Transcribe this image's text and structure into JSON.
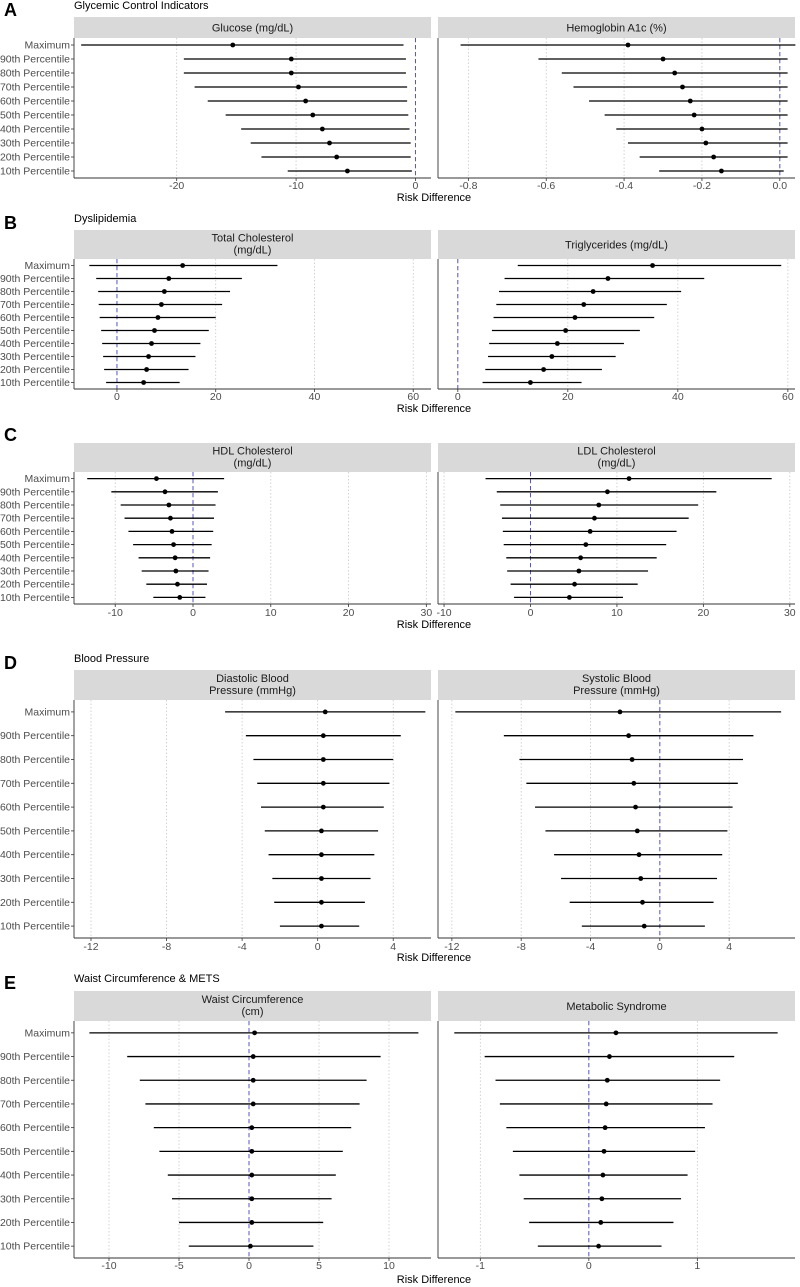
{
  "chart_data": [
    {
      "type": "forest",
      "letter": "A",
      "title": "Glycemic Control Indicators",
      "xlabel": "Risk Difference",
      "categories": [
        "Maximum",
        "90th Percentile",
        "80th Percentile",
        "70th Percentile",
        "60th Percentile",
        "50th Percentile",
        "40th Percentile",
        "30th Percentile",
        "20th Percentile",
        "10th Percentile"
      ],
      "panels": [
        {
          "strip": [
            "Glucose (mg/dL)"
          ],
          "xlim": [
            -28.6,
            1.3
          ],
          "xticks": [
            -20,
            -10,
            0
          ],
          "xtick_labels": [
            "-20",
            "-10",
            "0"
          ],
          "ref": 0,
          "estimate": [
            -15.3,
            -10.4,
            -10.4,
            -9.8,
            -9.2,
            -8.6,
            -7.8,
            -7.2,
            -6.6,
            -5.7
          ],
          "lower": [
            -28.0,
            -19.4,
            -19.4,
            -18.5,
            -17.4,
            -15.9,
            -14.6,
            -13.8,
            -12.9,
            -10.7
          ],
          "upper": [
            -1.0,
            -0.8,
            -0.8,
            -0.7,
            -0.7,
            -0.6,
            -0.5,
            -0.4,
            -0.4,
            -0.3
          ]
        },
        {
          "strip": [
            "Hemoglobin A1c (%)"
          ],
          "xlim": [
            -0.878,
            0.039
          ],
          "xticks": [
            -0.8,
            -0.6,
            -0.4,
            -0.2,
            0.0
          ],
          "xtick_labels": [
            "-0.8",
            "-0.6",
            "-0.4",
            "-0.2",
            "0.0"
          ],
          "ref": 0,
          "estimate": [
            -0.39,
            -0.3,
            -0.27,
            -0.25,
            -0.23,
            -0.22,
            -0.2,
            -0.19,
            -0.17,
            -0.15
          ],
          "lower": [
            -0.82,
            -0.62,
            -0.56,
            -0.53,
            -0.49,
            -0.45,
            -0.42,
            -0.39,
            -0.36,
            -0.31
          ],
          "upper": [
            0.04,
            0.02,
            0.02,
            0.02,
            0.02,
            0.02,
            0.02,
            0.02,
            0.02,
            0.01
          ]
        }
      ]
    },
    {
      "type": "forest",
      "letter": "B",
      "title": "Dyslipidemia",
      "xlabel": "Risk Difference",
      "categories": [
        "Maximum",
        "90th Percentile",
        "80th Percentile",
        "70th Percentile",
        "60th Percentile",
        "50th Percentile",
        "40th Percentile",
        "30th Percentile",
        "20th Percentile",
        "10th Percentile"
      ],
      "panels": [
        {
          "strip": [
            "Total Cholesterol",
            "(mg/dL)"
          ],
          "xlim": [
            -8.7,
            63.6
          ],
          "xticks": [
            0,
            20,
            40,
            60
          ],
          "xtick_labels": [
            "0",
            "20",
            "40",
            "60"
          ],
          "ref": 0,
          "estimate": [
            13.3,
            10.5,
            9.6,
            9.0,
            8.3,
            7.6,
            7.0,
            6.4,
            6.0,
            5.4
          ],
          "lower": [
            -5.6,
            -4.2,
            -3.8,
            -3.7,
            -3.5,
            -3.2,
            -3.0,
            -2.8,
            -2.6,
            -2.2
          ],
          "upper": [
            32.5,
            25.3,
            22.9,
            21.3,
            20.0,
            18.6,
            16.9,
            15.9,
            14.5,
            12.7
          ]
        },
        {
          "strip": [
            "Triglycerides (mg/dL)"
          ],
          "xlim": [
            -3.6,
            61.3
          ],
          "xticks": [
            0,
            20,
            40,
            60
          ],
          "xtick_labels": [
            "0",
            "20",
            "40",
            "60"
          ],
          "ref": 0,
          "estimate": [
            35.4,
            27.3,
            24.6,
            22.9,
            21.3,
            19.6,
            18.1,
            17.1,
            15.6,
            13.2
          ],
          "lower": [
            10.9,
            8.5,
            7.5,
            7.0,
            6.5,
            6.2,
            5.7,
            5.5,
            5.0,
            4.5
          ],
          "upper": [
            58.8,
            44.8,
            40.6,
            38.0,
            35.7,
            33.1,
            30.2,
            28.7,
            26.2,
            22.5
          ]
        }
      ]
    },
    {
      "type": "forest",
      "letter": "C",
      "title": "",
      "xlabel": "Risk Difference",
      "categories": [
        "Maximum",
        "90th Percentile",
        "80th Percentile",
        "70th Percentile",
        "60th Percentile",
        "50th Percentile",
        "40th Percentile",
        "30th Percentile",
        "20th Percentile",
        "10th Percentile"
      ],
      "panels": [
        {
          "strip": [
            "HDL Cholesterol",
            "(mg/dL)"
          ],
          "xlim": [
            -15.3,
            30.6
          ],
          "xticks": [
            -10,
            0,
            10,
            20,
            30
          ],
          "xtick_labels": [
            "-10",
            "0",
            "10",
            "20",
            "30"
          ],
          "ref": 0,
          "estimate": [
            -4.7,
            -3.6,
            -3.1,
            -2.9,
            -2.7,
            -2.5,
            -2.3,
            -2.2,
            -2.0,
            -1.7
          ],
          "lower": [
            -13.6,
            -10.5,
            -9.3,
            -8.8,
            -8.3,
            -7.7,
            -7.0,
            -6.6,
            -6.0,
            -5.1
          ],
          "upper": [
            4.0,
            3.2,
            2.9,
            2.7,
            2.6,
            2.4,
            2.2,
            2.0,
            1.8,
            1.6
          ]
        },
        {
          "strip": [
            "LDL Cholesterol",
            "(mg/dL)"
          ],
          "xlim": [
            -10.7,
            30.6
          ],
          "xticks": [
            -10,
            0,
            10,
            20,
            30
          ],
          "xtick_labels": [
            "-10",
            "0",
            "10",
            "20",
            "30"
          ],
          "ref": 0,
          "estimate": [
            11.4,
            8.9,
            7.9,
            7.4,
            6.9,
            6.4,
            5.8,
            5.6,
            5.1,
            4.5
          ],
          "lower": [
            -5.2,
            -3.9,
            -3.5,
            -3.3,
            -3.2,
            -3.1,
            -2.8,
            -2.7,
            -2.3,
            -1.9
          ],
          "upper": [
            27.9,
            21.5,
            19.4,
            18.3,
            16.9,
            15.7,
            14.6,
            13.6,
            12.4,
            10.7
          ]
        }
      ]
    },
    {
      "type": "forest",
      "letter": "D",
      "title": "Blood Pressure",
      "xlabel": "Risk Difference",
      "categories": [
        "Maximum",
        "90th Percentile",
        "80th Percentile",
        "70th Percentile",
        "60th Percentile",
        "50th Percentile",
        "40th Percentile",
        "30th Percentile",
        "20th Percentile",
        "10th Percentile"
      ],
      "panels": [
        {
          "strip": [
            "Diastolic Blood",
            "Pressure (mmHg)"
          ],
          "xlim": [
            -12.9,
            6.0
          ],
          "xticks": [
            -12,
            -8,
            -4,
            0,
            4
          ],
          "xtick_labels": [
            "-12",
            "-8",
            "-4",
            "0",
            "4"
          ],
          "ref": null,
          "estimate": [
            0.4,
            0.3,
            0.3,
            0.3,
            0.3,
            0.2,
            0.2,
            0.2,
            0.2,
            0.2
          ],
          "lower": [
            -4.9,
            -3.8,
            -3.4,
            -3.2,
            -3.0,
            -2.8,
            -2.6,
            -2.4,
            -2.3,
            -2.0
          ],
          "upper": [
            5.7,
            4.4,
            4.0,
            3.8,
            3.5,
            3.2,
            3.0,
            2.8,
            2.5,
            2.2
          ]
        },
        {
          "strip": [
            "Systolic Blood",
            "Pressure (mmHg)"
          ],
          "xlim": [
            -12.8,
            7.8
          ],
          "xticks": [
            -12,
            -8,
            -4,
            0,
            4
          ],
          "xtick_labels": [
            "-12",
            "-8",
            "-4",
            "0",
            "4"
          ],
          "ref": 0,
          "estimate": [
            -2.3,
            -1.8,
            -1.6,
            -1.5,
            -1.4,
            -1.3,
            -1.2,
            -1.1,
            -1.0,
            -0.9
          ],
          "lower": [
            -11.8,
            -9.0,
            -8.1,
            -7.7,
            -7.2,
            -6.6,
            -6.1,
            -5.7,
            -5.2,
            -4.5
          ],
          "upper": [
            7.0,
            5.4,
            4.8,
            4.5,
            4.2,
            3.9,
            3.6,
            3.3,
            3.1,
            2.6
          ]
        }
      ]
    },
    {
      "type": "forest",
      "letter": "E",
      "title": "Waist Circumference & METS",
      "xlabel": "Risk Difference",
      "categories": [
        "Maximum",
        "90th Percentile",
        "80th Percentile",
        "70th Percentile",
        "60th Percentile",
        "50th Percentile",
        "40th Percentile",
        "30th Percentile",
        "20th Percentile",
        "10th Percentile"
      ],
      "panels": [
        {
          "strip": [
            "Waist Circumference",
            "(cm)"
          ],
          "xlim": [
            -12.5,
            13.0
          ],
          "xticks": [
            -10,
            -5,
            0,
            5,
            10
          ],
          "xtick_labels": [
            "-10",
            "-5",
            "0",
            "5",
            "10"
          ],
          "ref": 0,
          "estimate": [
            0.4,
            0.3,
            0.3,
            0.3,
            0.2,
            0.2,
            0.2,
            0.2,
            0.2,
            0.1
          ],
          "lower": [
            -11.4,
            -8.7,
            -7.8,
            -7.4,
            -6.8,
            -6.4,
            -5.8,
            -5.5,
            -5.0,
            -4.3
          ],
          "upper": [
            12.1,
            9.4,
            8.4,
            7.9,
            7.3,
            6.7,
            6.2,
            5.9,
            5.3,
            4.6
          ]
        },
        {
          "strip": [
            "Metabolic Syndrome"
          ],
          "xlim": [
            -1.39,
            1.9
          ],
          "xticks": [
            -1,
            0,
            1
          ],
          "xtick_labels": [
            "-1",
            "0",
            "1"
          ],
          "ref": 0,
          "estimate": [
            0.25,
            0.19,
            0.17,
            0.16,
            0.15,
            0.14,
            0.13,
            0.12,
            0.11,
            0.09
          ],
          "lower": [
            -1.24,
            -0.96,
            -0.86,
            -0.82,
            -0.76,
            -0.7,
            -0.64,
            -0.6,
            -0.55,
            -0.47
          ],
          "upper": [
            1.74,
            1.34,
            1.21,
            1.14,
            1.07,
            0.98,
            0.91,
            0.85,
            0.78,
            0.67
          ]
        }
      ]
    }
  ]
}
